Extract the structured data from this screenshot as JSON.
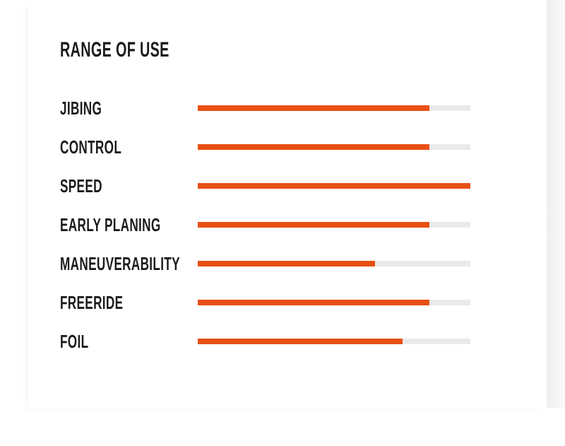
{
  "page": {
    "section_title": "RANGE OF USE"
  },
  "chart_data": {
    "type": "bar",
    "orientation": "horizontal",
    "title": "RANGE OF USE",
    "categories": [
      "JIBING",
      "CONTROL",
      "SPEED",
      "EARLY PLANING",
      "MANEUVERABILITY",
      "FREERIDE",
      "FOIL"
    ],
    "values": [
      85,
      85,
      100,
      85,
      65,
      85,
      75
    ],
    "value_unit": "percent of track length",
    "xlim": [
      0,
      100
    ],
    "grid": false,
    "legend": false,
    "data_labels": false,
    "colors": {
      "bar_fill": "#e85014",
      "bar_track": "#eaeaea",
      "text": "#1b1b1b",
      "card_background": "#ffffff",
      "page_background_right": "#efefef"
    }
  }
}
